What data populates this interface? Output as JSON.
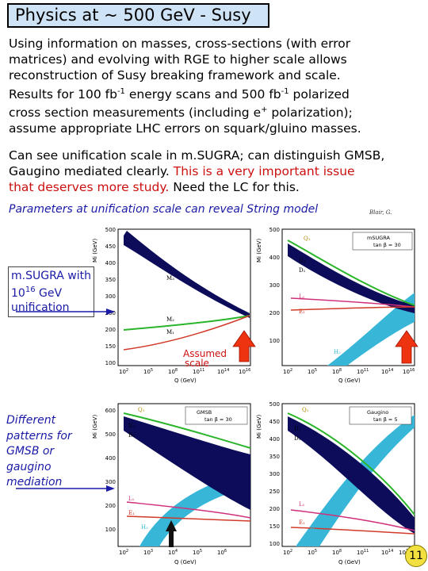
{
  "title": "Physics at ~ 500 GeV - Susy",
  "para1": {
    "lines": [
      "Using information on masses, cross-sections (with error",
      "matrices) and evolving with RGE to higher scale allows",
      "reconstruction of Susy breaking framework and scale."
    ],
    "line4_a": "Results for 100 fb",
    "line4_sup1": "-1",
    "line4_b": " energy scans and 500 fb",
    "line4_sup2": "-1",
    "line4_c": " polarized",
    "line5_a": "cross section measurements (including e",
    "line5_sup": "+",
    "line5_b": " polarization);",
    "line6": "assume appropriate LHC errors on squark/gluino masses."
  },
  "para2": {
    "line1": "Can see unification scale in m.SUGRA;  can distinguish GMSB,",
    "line2_a": "Gaugino mediated clearly.  ",
    "line2_red": "This is a very important issue",
    "line3_red": "that deserves more study.",
    "line3_b": "  Need the LC for this."
  },
  "caption": "Parameters at unification scale can reveal String model",
  "tiny_ref": "Blair, G.",
  "side1": {
    "line1": "m.SUGRA with",
    "line2_a": "10",
    "line2_sup": "16",
    "line2_b": " GeV",
    "line3": "unification"
  },
  "side2": {
    "lines": [
      "Different",
      "patterns for",
      "GMSB or",
      "gaugino",
      "mediation"
    ]
  },
  "assumed_scale": {
    "line1": "Assumed",
    "line2": "scale"
  },
  "page_number": "11",
  "colors": {
    "title_bg": "#cfe3f6",
    "text_blue": "#1a1aa6",
    "text_red": "#cc1010",
    "band_dark": "#0c0c5a",
    "band_cyan": "#38b6d8",
    "curve_green": "#2ab52a",
    "curve_red": "#d23a2a",
    "curve_pink": "#d0307a",
    "badge": "#f2e040"
  },
  "plots": [
    {
      "ylabel": "Mi (GeV)",
      "xlabel": "Q (GeV)",
      "yticks": [
        "100",
        "150",
        "200",
        "250",
        "300",
        "350",
        "400",
        "450",
        "500"
      ],
      "xticks": [
        "10",
        "10",
        "10",
        "10",
        "10"
      ],
      "xsups": [
        "2",
        "5",
        "8",
        "11",
        "14"
      ],
      "extra_tick": {
        "base": "10",
        "sup": "16"
      },
      "curve_labels": [
        "M₃",
        "M₂",
        "M₁"
      ],
      "legend": {
        "name": "",
        "tanb": ""
      }
    },
    {
      "ylabel": "Mi (GeV)",
      "xlabel": "Q (GeV)",
      "yticks": [
        "100",
        "200",
        "300",
        "400",
        "500"
      ],
      "xticks": [
        "10",
        "10",
        "10",
        "10",
        "10"
      ],
      "xsups": [
        "2",
        "5",
        "8",
        "11",
        "14"
      ],
      "extra_tick": {
        "base": "10",
        "sup": "16"
      },
      "curve_labels": [
        "Q₁",
        "U₁",
        "D₁",
        "L₁",
        "E₁",
        "H₂"
      ],
      "legend": {
        "name": "mSUGRA",
        "tanb": "tan β = 30"
      }
    },
    {
      "ylabel": "Mi (GeV)",
      "xlabel": "Q (GeV)",
      "yticks": [
        "100",
        "200",
        "300",
        "400",
        "500",
        "600"
      ],
      "xticks": [
        "10",
        "10",
        "10",
        "10",
        "10"
      ],
      "xsups": [
        "2",
        "3",
        "4",
        "5",
        "6"
      ],
      "extra_tick": {
        "base": "",
        "sup": ""
      },
      "curve_labels": [
        "Q₁",
        "U₁",
        "D₁",
        "L₁",
        "E₁",
        "H₂"
      ],
      "legend": {
        "name": "GMSB",
        "tanb": "tan β = 30"
      }
    },
    {
      "ylabel": "Mi (GeV)",
      "xlabel": "Q (GeV)",
      "yticks": [
        "100",
        "150",
        "200",
        "250",
        "300",
        "350",
        "400",
        "450",
        "500"
      ],
      "xticks": [
        "10",
        "10",
        "10",
        "10",
        "10"
      ],
      "xsups": [
        "2",
        "5",
        "8",
        "11",
        "14"
      ],
      "extra_tick": {
        "base": "10",
        "sup": "16"
      },
      "curve_labels": [
        "Q₁",
        "U₁",
        "D₁",
        "L₁",
        "E₁",
        "H₂"
      ],
      "legend": {
        "name": "Gaugino",
        "tanb": "tan β = 5"
      }
    }
  ]
}
